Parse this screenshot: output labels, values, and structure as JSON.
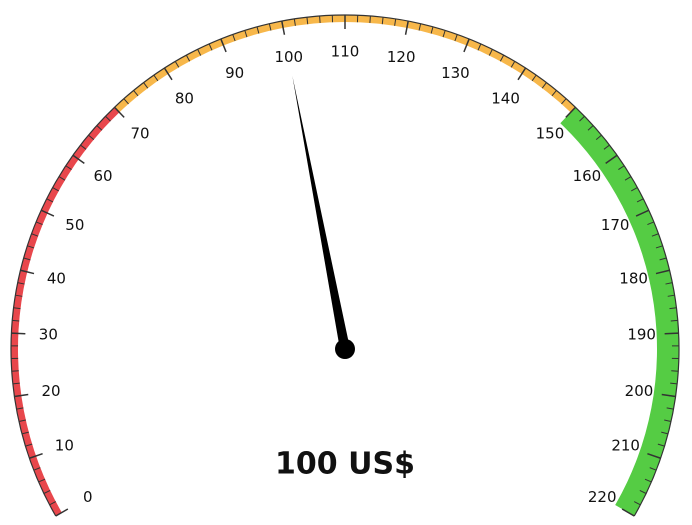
{
  "chart_data": {
    "type": "gauge",
    "values": [
      100
    ],
    "value_labels": [
      "100 US$"
    ],
    "ylim": [
      0,
      220
    ],
    "yticks": [
      0,
      10,
      20,
      30,
      40,
      50,
      60,
      70,
      80,
      90,
      100,
      110,
      120,
      130,
      140,
      150,
      160,
      170,
      180,
      190,
      200,
      210,
      220
    ],
    "minor_tick_interval": 2,
    "bands": [
      {
        "from": 0,
        "to": 70,
        "color": "#e8474c",
        "width": "thin"
      },
      {
        "from": 70,
        "to": 150,
        "color": "#f7b74a",
        "width": "thin"
      },
      {
        "from": 150,
        "to": 220,
        "color": "#55cc44",
        "width": "thick"
      }
    ],
    "needle_color": "#000000"
  }
}
